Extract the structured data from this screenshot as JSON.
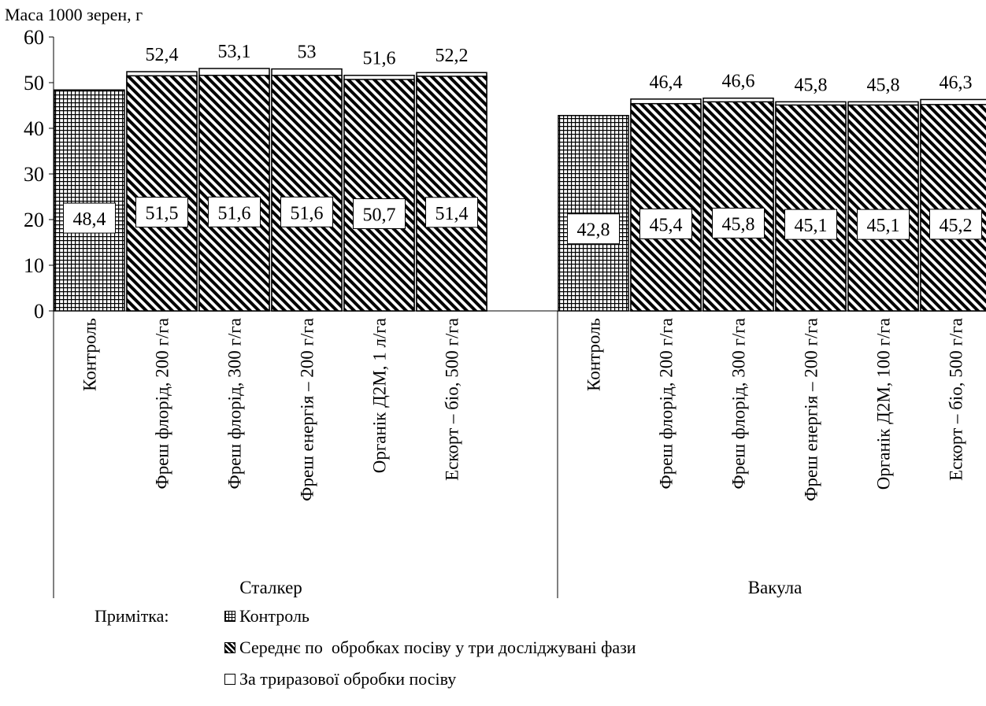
{
  "chart_data": {
    "type": "bar",
    "ylabel": "Маса 1000 зерен, г",
    "ylim": [
      0,
      60
    ],
    "yticks": [
      "0",
      "10",
      "20",
      "30",
      "40",
      "50",
      "60"
    ],
    "groups": [
      {
        "name": "Сталкер",
        "categories": [
          "Контроль",
          "Фреш флорід, 200 г/га",
          "Фреш флорід, 300 г/га",
          "Фреш енергія – 200 г/га",
          "Органік Д2М, 1 л/га",
          "Ескорт – біо, 500 г/га"
        ],
        "average": [
          48.4,
          51.5,
          51.6,
          51.6,
          50.7,
          51.4
        ],
        "average_labels": [
          "48,4",
          "51,5",
          "51,6",
          "51,6",
          "50,7",
          "51,4"
        ],
        "triple": [
          null,
          52.4,
          53.1,
          53.0,
          51.6,
          52.2
        ],
        "triple_labels": [
          "",
          "52,4",
          "53,1",
          "53",
          "51,6",
          "52,2"
        ]
      },
      {
        "name": "Вакула",
        "categories": [
          "Контроль",
          "Фреш флорід, 200 г/га",
          "Фреш флорід, 300 г/га",
          "Фреш енергія – 200 г/га",
          "Органік Д2М, 100 г/га",
          "Ескорт – біо, 500 г/га"
        ],
        "average": [
          42.8,
          45.4,
          45.8,
          45.1,
          45.1,
          45.2
        ],
        "average_labels": [
          "42,8",
          "45,4",
          "45,8",
          "45,1",
          "45,1",
          "45,2"
        ],
        "triple": [
          null,
          46.4,
          46.6,
          45.8,
          45.8,
          46.3
        ],
        "triple_labels": [
          "",
          "46,4",
          "46,6",
          "45,8",
          "45,8",
          "46,3"
        ]
      }
    ],
    "legend": {
      "note": "Примітка:",
      "items": [
        {
          "key": "control",
          "label": "Контроль"
        },
        {
          "key": "average",
          "label": "Середнє по  обробках посіву у три досліджувані фази"
        },
        {
          "key": "triple",
          "label": "За триразової обробки посіву"
        }
      ]
    }
  }
}
